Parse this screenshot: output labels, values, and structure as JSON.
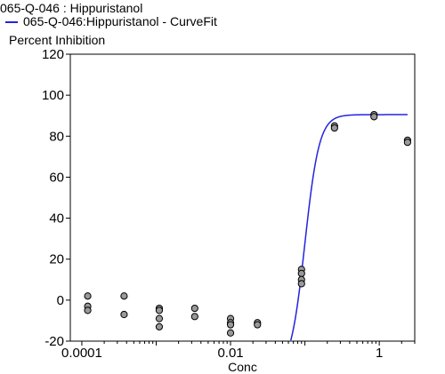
{
  "header": {
    "title": "065-Q-046  : Hippuristanol",
    "legend_label": "065-Q-046:Hippuristanol - CurveFit",
    "ylabel": "Percent  Inhibition"
  },
  "chart_data": {
    "type": "scatter",
    "title": "065-Q-046  : Hippuristanol",
    "xlabel": "Conc",
    "ylabel": "Percent  Inhibition",
    "x_scale": "log",
    "xlim": [
      7e-05,
      3
    ],
    "ylim": [
      -20,
      120
    ],
    "yticks": [
      -20,
      0,
      20,
      40,
      60,
      80,
      100,
      120
    ],
    "xticks": [
      0.0001,
      0.01,
      1
    ],
    "xtick_labels": [
      "0.0001",
      "0.01",
      "1"
    ],
    "points": [
      {
        "x": 0.00012,
        "y": 2
      },
      {
        "x": 0.00012,
        "y": -3
      },
      {
        "x": 0.00012,
        "y": -5
      },
      {
        "x": 0.00037,
        "y": 2
      },
      {
        "x": 0.00037,
        "y": -7
      },
      {
        "x": 0.0011,
        "y": -4
      },
      {
        "x": 0.0011,
        "y": -5
      },
      {
        "x": 0.0011,
        "y": -9
      },
      {
        "x": 0.0011,
        "y": -13
      },
      {
        "x": 0.0033,
        "y": -4
      },
      {
        "x": 0.0033,
        "y": -8
      },
      {
        "x": 0.01,
        "y": -9
      },
      {
        "x": 0.01,
        "y": -11
      },
      {
        "x": 0.01,
        "y": -12
      },
      {
        "x": 0.01,
        "y": -16
      },
      {
        "x": 0.023,
        "y": -11
      },
      {
        "x": 0.023,
        "y": -12
      },
      {
        "x": 0.09,
        "y": 15
      },
      {
        "x": 0.09,
        "y": 13
      },
      {
        "x": 0.09,
        "y": 10
      },
      {
        "x": 0.09,
        "y": 8
      },
      {
        "x": 0.25,
        "y": 85
      },
      {
        "x": 0.25,
        "y": 84
      },
      {
        "x": 0.85,
        "y": 90.5
      },
      {
        "x": 0.85,
        "y": 89.5
      },
      {
        "x": 2.4,
        "y": 78
      },
      {
        "x": 2.4,
        "y": 77
      }
    ],
    "curve_fit": {
      "name": "065-Q-046:Hippuristanol - CurveFit",
      "model": "4-parameter logistic",
      "bottom": -35,
      "top": 90.5,
      "ec50": 0.1,
      "hill": 4.5,
      "x_range": [
        0.03,
        2.4
      ],
      "color": "#2323e0"
    },
    "marker_color": "#999999",
    "grid": false
  }
}
